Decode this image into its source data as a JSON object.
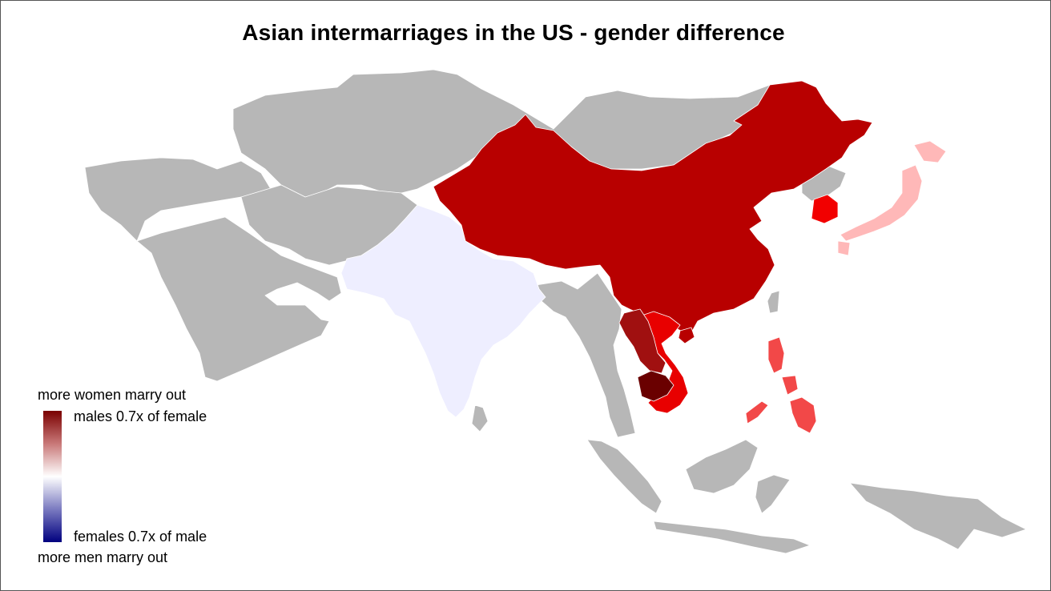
{
  "title": "Asian intermarriages in the US - gender difference",
  "legend": {
    "top_caption": "more women marry out",
    "top_label": "males 0.7x of female",
    "bottom_label": "females 0.7x of male",
    "bottom_caption": "more men marry out",
    "scale_colors": [
      "#7a0000",
      "#c87878",
      "#ffffff",
      "#7a7ac0",
      "#00007f"
    ]
  },
  "colors": {
    "no_data": "#b7b7b7",
    "borders": "#ffffff",
    "china": "#b80000",
    "vietnam": "#e80000",
    "laos": "#a01010",
    "cambodia": "#6a0000",
    "south_korea": "#f20000",
    "philippines": "#f24848",
    "japan": "#ffb8b8",
    "india": "#eeeeff"
  },
  "regions": [
    {
      "country": "China",
      "color_key": "china"
    },
    {
      "country": "Vietnam",
      "color_key": "vietnam"
    },
    {
      "country": "Laos",
      "color_key": "laos"
    },
    {
      "country": "Cambodia",
      "color_key": "cambodia"
    },
    {
      "country": "South Korea",
      "color_key": "south_korea"
    },
    {
      "country": "Philippines",
      "color_key": "philippines"
    },
    {
      "country": "Japan",
      "color_key": "japan"
    },
    {
      "country": "India",
      "color_key": "india"
    }
  ]
}
